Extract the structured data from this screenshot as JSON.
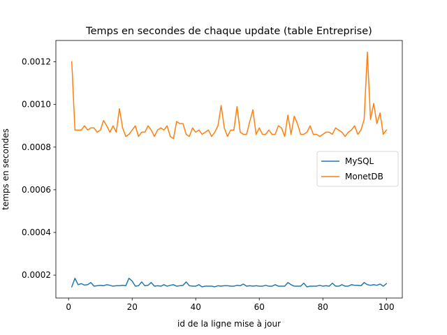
{
  "chart_data": {
    "type": "line",
    "title": "Temps en secondes de chaque update (table Entreprise)",
    "xlabel": "id de la ligne mise à jour",
    "ylabel": "temps en secondes",
    "xlim": [
      -4,
      105
    ],
    "ylim": [
      9.25e-05,
      0.0013
    ],
    "xticks": [
      0,
      20,
      40,
      60,
      80,
      100
    ],
    "xtick_labels": [
      "0",
      "20",
      "40",
      "60",
      "80",
      "100"
    ],
    "yticks": [
      0.0002,
      0.0004,
      0.0006,
      0.0008,
      0.001,
      0.0012
    ],
    "ytick_labels": [
      "0.0002",
      "0.0004",
      "0.0006",
      "0.0008",
      "0.0010",
      "0.0012"
    ],
    "grid": false,
    "legend_position": "center-right",
    "x": [
      1,
      2,
      3,
      4,
      5,
      6,
      7,
      8,
      9,
      10,
      11,
      12,
      13,
      14,
      15,
      16,
      17,
      18,
      19,
      20,
      21,
      22,
      23,
      24,
      25,
      26,
      27,
      28,
      29,
      30,
      31,
      32,
      33,
      34,
      35,
      36,
      37,
      38,
      39,
      40,
      41,
      42,
      43,
      44,
      45,
      46,
      47,
      48,
      49,
      50,
      51,
      52,
      53,
      54,
      55,
      56,
      57,
      58,
      59,
      60,
      61,
      62,
      63,
      64,
      65,
      66,
      67,
      68,
      69,
      70,
      71,
      72,
      73,
      74,
      75,
      76,
      77,
      78,
      79,
      80,
      81,
      82,
      83,
      84,
      85,
      86,
      87,
      88,
      89,
      90,
      91,
      92,
      93,
      94,
      95,
      96,
      97,
      98,
      99,
      100
    ],
    "series": [
      {
        "name": "MySQL",
        "color": "#1f77b4",
        "values": [
          0.000145,
          0.000185,
          0.000155,
          0.00016,
          0.000153,
          0.000155,
          0.000165,
          0.000148,
          0.00015,
          0.000152,
          0.00015,
          0.000155,
          0.000152,
          0.000148,
          0.00015,
          0.00015,
          0.000152,
          0.00015,
          0.000185,
          0.000172,
          0.000148,
          0.00015,
          0.000168,
          0.00015,
          0.000152,
          0.000165,
          0.000148,
          0.00015,
          0.000148,
          0.000155,
          0.000148,
          0.000152,
          0.000155,
          0.000148,
          0.00015,
          0.000152,
          0.000168,
          0.00015,
          0.000148,
          0.000148,
          0.000155,
          0.000145,
          0.000148,
          0.000148,
          0.000148,
          0.000145,
          0.00015,
          0.000148,
          0.00015,
          0.00015,
          0.000148,
          0.000148,
          0.000152,
          0.00015,
          0.000158,
          0.000148,
          0.00015,
          0.000148,
          0.00015,
          0.000148,
          0.000148,
          0.000152,
          0.000148,
          0.000148,
          0.000155,
          0.000148,
          0.000148,
          0.000148,
          0.000165,
          0.000155,
          0.000148,
          0.000148,
          0.000148,
          0.000162,
          0.000145,
          0.000148,
          0.000148,
          0.000148,
          0.000152,
          0.000148,
          0.00015,
          0.000148,
          0.000162,
          0.000148,
          0.000148,
          0.000155,
          0.000148,
          0.000148,
          0.000155,
          0.000152,
          0.000152,
          0.00015,
          0.000165,
          0.000155,
          0.000152,
          0.000155,
          0.000152,
          0.000158,
          0.000148,
          0.00016
        ]
      },
      {
        "name": "MonetDB",
        "color": "#ff7f0e",
        "values": [
          0.0012,
          0.00088,
          0.00088,
          0.00088,
          0.0009,
          0.00088,
          0.00089,
          0.00089,
          0.00087,
          0.00088,
          0.000925,
          0.0009,
          0.00087,
          0.0009,
          0.00087,
          0.00098,
          0.00089,
          0.00085,
          0.00086,
          0.00088,
          0.0009,
          0.00085,
          0.00087,
          0.00087,
          0.0009,
          0.00088,
          0.00085,
          0.00088,
          0.00089,
          0.00088,
          0.0009,
          0.00085,
          0.00084,
          0.00092,
          0.00091,
          0.00091,
          0.00086,
          0.00085,
          0.00089,
          0.00087,
          0.00088,
          0.00086,
          0.00087,
          0.00088,
          0.00085,
          0.00087,
          0.0009,
          0.000995,
          0.00089,
          0.00085,
          0.00088,
          0.00088,
          0.00099,
          0.00087,
          0.00086,
          0.00086,
          0.00092,
          0.000975,
          0.00086,
          0.00089,
          0.00086,
          0.00086,
          0.00088,
          0.00086,
          0.00086,
          0.0009,
          0.00089,
          0.00085,
          0.00095,
          0.00086,
          0.000945,
          0.00091,
          0.00086,
          0.00086,
          0.00087,
          0.0009,
          0.00086,
          0.00086,
          0.00085,
          0.00086,
          0.00087,
          0.00087,
          0.00086,
          0.00089,
          0.00088,
          0.00087,
          0.00085,
          0.00087,
          0.00088,
          0.0009,
          0.00086,
          0.00088,
          0.00093,
          0.001245,
          0.00093,
          0.001005,
          0.00091,
          0.00096,
          0.00086,
          0.00088
        ]
      }
    ]
  }
}
